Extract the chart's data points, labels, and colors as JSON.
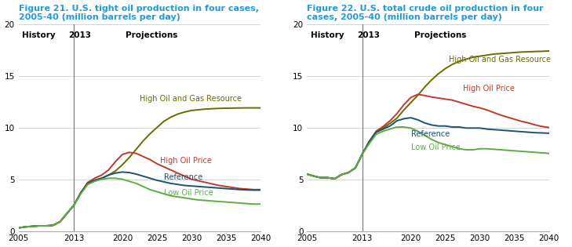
{
  "fig21_title": "Figure 21. U.S. tight oil production in four cases,\n2005-40 (million barrels per day)",
  "fig22_title": "Figure 22. U.S. total crude oil production in four\ncases, 2005-40 (million barrels per day)",
  "title_color": "#1F9BD7",
  "title_fontsize": 8.0,
  "years": [
    2005,
    2006,
    2007,
    2008,
    2009,
    2010,
    2011,
    2012,
    2013,
    2014,
    2015,
    2016,
    2017,
    2018,
    2019,
    2020,
    2021,
    2022,
    2023,
    2024,
    2025,
    2026,
    2027,
    2028,
    2029,
    2030,
    2031,
    2032,
    2033,
    2034,
    2035,
    2036,
    2037,
    2038,
    2039,
    2040
  ],
  "fig21": {
    "high_oil_gas": [
      0.3,
      0.4,
      0.45,
      0.5,
      0.5,
      0.55,
      0.9,
      1.7,
      2.5,
      3.7,
      4.6,
      4.9,
      5.1,
      5.4,
      5.8,
      6.4,
      7.1,
      7.9,
      8.7,
      9.4,
      10.0,
      10.6,
      11.0,
      11.3,
      11.5,
      11.65,
      11.72,
      11.78,
      11.82,
      11.85,
      11.87,
      11.88,
      11.89,
      11.9,
      11.9,
      11.9
    ],
    "high_oil_price": [
      0.3,
      0.4,
      0.45,
      0.5,
      0.5,
      0.55,
      0.9,
      1.7,
      2.5,
      3.7,
      4.7,
      5.1,
      5.4,
      5.9,
      6.7,
      7.4,
      7.6,
      7.5,
      7.2,
      6.9,
      6.5,
      6.2,
      5.9,
      5.6,
      5.3,
      5.0,
      4.85,
      4.7,
      4.55,
      4.4,
      4.3,
      4.2,
      4.1,
      4.05,
      4.0,
      4.0
    ],
    "reference": [
      0.3,
      0.4,
      0.45,
      0.5,
      0.5,
      0.55,
      0.9,
      1.7,
      2.5,
      3.7,
      4.6,
      4.9,
      5.1,
      5.4,
      5.6,
      5.7,
      5.65,
      5.5,
      5.3,
      5.1,
      4.9,
      4.75,
      4.6,
      4.5,
      4.4,
      4.35,
      4.3,
      4.25,
      4.2,
      4.15,
      4.1,
      4.05,
      4.0,
      3.97,
      3.95,
      3.95
    ],
    "low_oil_price": [
      0.3,
      0.4,
      0.45,
      0.5,
      0.5,
      0.55,
      0.9,
      1.7,
      2.5,
      3.6,
      4.5,
      4.8,
      5.0,
      5.1,
      5.1,
      5.0,
      4.8,
      4.6,
      4.3,
      4.0,
      3.8,
      3.6,
      3.4,
      3.3,
      3.2,
      3.1,
      3.0,
      2.95,
      2.9,
      2.85,
      2.8,
      2.75,
      2.7,
      2.65,
      2.6,
      2.6
    ]
  },
  "fig22": {
    "high_oil_gas": [
      5.5,
      5.3,
      5.15,
      5.15,
      5.05,
      5.45,
      5.65,
      6.1,
      7.45,
      8.65,
      9.55,
      9.95,
      10.4,
      10.9,
      11.7,
      12.4,
      13.1,
      13.9,
      14.6,
      15.2,
      15.7,
      16.1,
      16.4,
      16.6,
      16.8,
      16.9,
      17.0,
      17.1,
      17.15,
      17.2,
      17.25,
      17.3,
      17.32,
      17.35,
      17.37,
      17.4
    ],
    "high_oil_price": [
      5.5,
      5.3,
      5.15,
      5.15,
      5.05,
      5.45,
      5.65,
      6.1,
      7.45,
      8.65,
      9.65,
      10.1,
      10.65,
      11.35,
      12.2,
      12.9,
      13.2,
      13.1,
      12.95,
      12.85,
      12.75,
      12.65,
      12.45,
      12.25,
      12.05,
      11.9,
      11.7,
      11.45,
      11.2,
      11.0,
      10.8,
      10.6,
      10.45,
      10.25,
      10.1,
      10.0
    ],
    "reference": [
      5.5,
      5.3,
      5.15,
      5.15,
      5.05,
      5.45,
      5.65,
      6.1,
      7.45,
      8.65,
      9.55,
      9.85,
      10.15,
      10.65,
      10.85,
      10.95,
      10.75,
      10.45,
      10.25,
      10.15,
      10.15,
      10.05,
      10.05,
      9.95,
      9.95,
      9.95,
      9.85,
      9.8,
      9.75,
      9.7,
      9.65,
      9.6,
      9.55,
      9.5,
      9.48,
      9.45
    ],
    "low_oil_price": [
      5.5,
      5.3,
      5.15,
      5.15,
      5.05,
      5.45,
      5.65,
      6.1,
      7.45,
      8.45,
      9.35,
      9.65,
      9.85,
      10.05,
      10.05,
      9.95,
      9.65,
      9.25,
      8.85,
      8.55,
      8.35,
      8.15,
      7.95,
      7.85,
      7.85,
      7.95,
      7.95,
      7.9,
      7.85,
      7.8,
      7.75,
      7.7,
      7.65,
      7.6,
      7.55,
      7.5
    ]
  },
  "color_high_gas": "#6B6B00",
  "color_high_oil": "#C0392B",
  "color_reference": "#1A5276",
  "color_low_oil": "#5BAD44",
  "vline_year": 2013,
  "ylim": [
    0,
    20
  ],
  "yticks": [
    0,
    5,
    10,
    15,
    20
  ],
  "xticks": [
    2005,
    2013,
    2020,
    2025,
    2030,
    2035,
    2040
  ],
  "xticklabels": [
    "2005",
    "2013",
    "2020",
    "2025",
    "2030",
    "2035",
    "2040"
  ],
  "history_label": "History",
  "vline_color": "#808080",
  "grid_color": "#CCCCCC",
  "lw": 1.4,
  "tick_fontsize": 7.5,
  "annot_fontsize": 7.0
}
